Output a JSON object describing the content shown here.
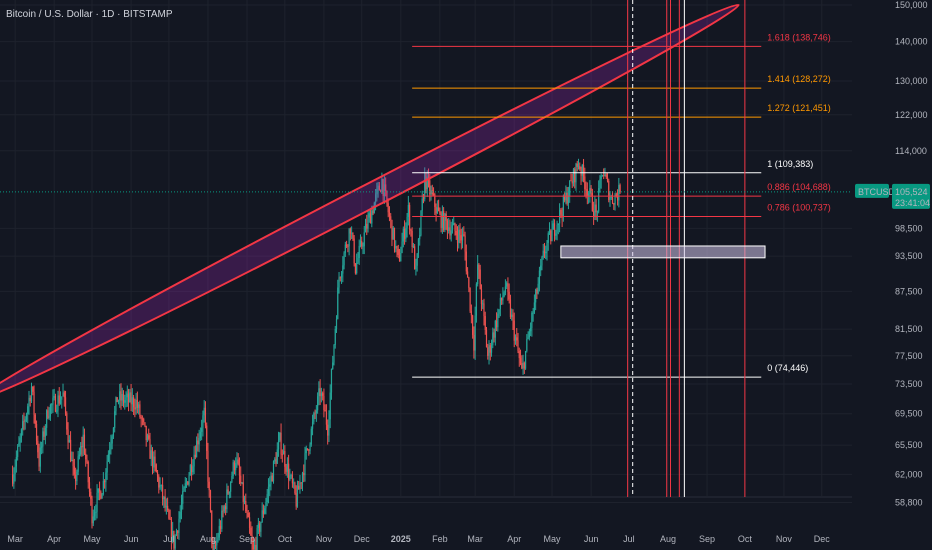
{
  "header": {
    "symbol_title": "Bitcoin / U.S. Dollar · 1D · BITSTAMP"
  },
  "price_badge": {
    "ticker": "BTCUSD",
    "price": "105,524",
    "countdown": "23:41:04"
  },
  "colors": {
    "background": "#131722",
    "grid": "#1e222d",
    "axis_text": "#b2b5be",
    "candle_up": "#26a69a",
    "candle_down": "#ef5350",
    "ellipse": "#f23645",
    "fib_red": "#f23645",
    "fib_orange": "#ff9800",
    "fib_white": "#ffffff",
    "badge": "#089981"
  },
  "chart_data": {
    "type": "candlestick",
    "title": "Bitcoin / U.S. Dollar · 1D · BITSTAMP",
    "y_scale": "log",
    "ylim": [
      55000,
      150000
    ],
    "x_ticks": [
      "Mar",
      "Apr",
      "May",
      "Jun",
      "Jul",
      "Aug",
      "Sep",
      "Oct",
      "Nov",
      "Dec",
      "2025",
      "Feb",
      "Mar",
      "Apr",
      "May",
      "Jun",
      "Jul",
      "Aug",
      "Sep",
      "Oct",
      "Nov",
      "Dec"
    ],
    "y_ticks": [
      "150,000",
      "140,000",
      "130,000",
      "122,000",
      "114,000",
      "98,500",
      "93,500",
      "87,500",
      "81,500",
      "77,500",
      "73,500",
      "69,500",
      "65,500",
      "62,000",
      "58,800"
    ],
    "last_price": 105524,
    "price_path": [
      {
        "date": "2024-02-28",
        "price": 62000
      },
      {
        "date": "2024-03-05",
        "price": 66000
      },
      {
        "date": "2024-03-14",
        "price": 73100
      },
      {
        "date": "2024-03-20",
        "price": 63500
      },
      {
        "date": "2024-03-27",
        "price": 70000
      },
      {
        "date": "2024-04-08",
        "price": 72000
      },
      {
        "date": "2024-04-17",
        "price": 61000
      },
      {
        "date": "2024-04-24",
        "price": 66500
      },
      {
        "date": "2024-05-01",
        "price": 57500
      },
      {
        "date": "2024-05-10",
        "price": 61000
      },
      {
        "date": "2024-05-21",
        "price": 71500
      },
      {
        "date": "2024-06-05",
        "price": 71000
      },
      {
        "date": "2024-06-24",
        "price": 60500
      },
      {
        "date": "2024-07-05",
        "price": 54500
      },
      {
        "date": "2024-07-14",
        "price": 60500
      },
      {
        "date": "2024-07-29",
        "price": 69500
      },
      {
        "date": "2024-08-05",
        "price": 53000
      },
      {
        "date": "2024-08-23",
        "price": 64000
      },
      {
        "date": "2024-09-06",
        "price": 53500
      },
      {
        "date": "2024-09-27",
        "price": 66000
      },
      {
        "date": "2024-10-10",
        "price": 59000
      },
      {
        "date": "2024-10-29",
        "price": 72500
      },
      {
        "date": "2024-11-04",
        "price": 67800
      },
      {
        "date": "2024-11-13",
        "price": 90000
      },
      {
        "date": "2024-11-22",
        "price": 99000
      },
      {
        "date": "2024-11-26",
        "price": 91500
      },
      {
        "date": "2024-12-05",
        "price": 99000
      },
      {
        "date": "2024-12-17",
        "price": 107800
      },
      {
        "date": "2024-12-30",
        "price": 92500
      },
      {
        "date": "2025-01-07",
        "price": 101800
      },
      {
        "date": "2025-01-13",
        "price": 90500
      },
      {
        "date": "2025-01-20",
        "price": 108300
      },
      {
        "date": "2025-02-01",
        "price": 100500
      },
      {
        "date": "2025-02-20",
        "price": 96500
      },
      {
        "date": "2025-02-28",
        "price": 79500
      },
      {
        "date": "2025-03-03",
        "price": 92000
      },
      {
        "date": "2025-03-11",
        "price": 77500
      },
      {
        "date": "2025-03-25",
        "price": 88500
      },
      {
        "date": "2025-04-07",
        "price": 75000
      },
      {
        "date": "2025-04-25",
        "price": 94500
      },
      {
        "date": "2025-05-08",
        "price": 101500
      },
      {
        "date": "2025-05-22",
        "price": 111500
      },
      {
        "date": "2025-06-05",
        "price": 101000
      },
      {
        "date": "2025-06-10",
        "price": 110000
      },
      {
        "date": "2025-06-17",
        "price": 104000
      },
      {
        "date": "2025-06-24",
        "price": 105524
      }
    ],
    "fibonacci": [
      {
        "label": "1.618 (138,746)",
        "price": 138746,
        "color": "#f23645"
      },
      {
        "label": "1.414 (128,272)",
        "price": 128272,
        "color": "#ff9800"
      },
      {
        "label": "1.272 (121,451)",
        "price": 121451,
        "color": "#ff9800"
      },
      {
        "label": "1 (109,383)",
        "price": 109383,
        "color": "#ffffff"
      },
      {
        "label": "0.886 (104,688)",
        "price": 104688,
        "color": "#f23645"
      },
      {
        "label": "0.786 (100,737)",
        "price": 100737,
        "color": "#f23645"
      },
      {
        "label": "0 (74,446)",
        "price": 74446,
        "color": "#ffffff"
      }
    ],
    "vertical_markers": [
      {
        "date": "2025-06-30",
        "color": "#f23645",
        "style": "solid"
      },
      {
        "date": "2025-07-04",
        "color": "#ffffff",
        "style": "dashed"
      },
      {
        "date": "2025-07-31",
        "color": "#f23645",
        "style": "solid"
      },
      {
        "date": "2025-08-03",
        "color": "#f23645",
        "style": "solid"
      },
      {
        "date": "2025-08-10",
        "color": "#f23645",
        "style": "solid"
      },
      {
        "date": "2025-08-14",
        "color": "#ffffff",
        "style": "solid"
      },
      {
        "date": "2025-10-01",
        "color": "#f23645",
        "style": "solid"
      }
    ],
    "support_box": {
      "date_start": "2025-05-08",
      "date_end": "2025-10-17",
      "price_low": 93200,
      "price_high": 95300
    },
    "ellipse_channel": {
      "start": {
        "date": "2024-02-01",
        "price": 71500
      },
      "end": {
        "date": "2025-09-26",
        "price": 150000
      }
    }
  }
}
